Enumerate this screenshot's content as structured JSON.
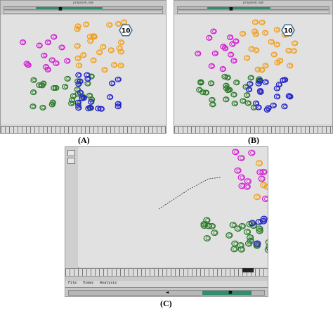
{
  "windows": [
    {
      "id": "A",
      "caption": "(A)",
      "title": "proposed.nam",
      "node_label": "10"
    },
    {
      "id": "B",
      "caption": "(B)",
      "title": "proposed.nam",
      "node_label": "10"
    },
    {
      "id": "C",
      "caption": "(C)"
    }
  ],
  "menu": {
    "file": "File",
    "views": "Views",
    "analysis": "Analysis"
  },
  "controls": {
    "stop_glyph": "■",
    "rewind_glyph": "◄",
    "play_glyph": "►"
  },
  "colors": {
    "magenta": "#d21fd2",
    "orange": "#f0a020",
    "green": "#2a7a2a",
    "blue": "#2323c8"
  }
}
